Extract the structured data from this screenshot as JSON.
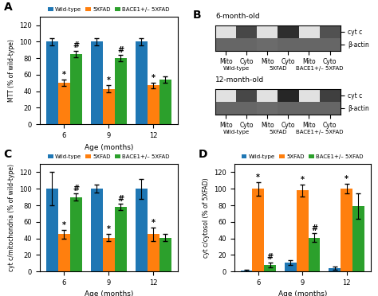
{
  "chart_data": [
    {
      "type": "bar",
      "title": "A",
      "xlabel": "Age (months)",
      "ylabel": "MTT (% of wild-type)",
      "categories": [
        "6",
        "9",
        "12"
      ],
      "series": [
        {
          "name": "Wild-type",
          "values": [
            100,
            100,
            100
          ],
          "errors": [
            4,
            4,
            4
          ]
        },
        {
          "name": "5XFAD",
          "values": [
            50,
            43,
            47
          ],
          "errors": [
            4,
            4,
            3
          ]
        },
        {
          "name": "BACE1+/– 5XFAD",
          "values": [
            85,
            80,
            54
          ],
          "errors": [
            4,
            4,
            4
          ]
        }
      ],
      "ylim": [
        0,
        130
      ],
      "yticks": [
        0,
        20,
        40,
        60,
        80,
        100,
        120
      ],
      "legend": "upper center",
      "annotations": [
        {
          "text": "*",
          "series": "5XFAD",
          "category": "6"
        },
        {
          "text": "*",
          "series": "5XFAD",
          "category": "9"
        },
        {
          "text": "*",
          "series": "5XFAD",
          "category": "12"
        },
        {
          "text": "#",
          "series": "BACE1+/– 5XFAD",
          "category": "6"
        },
        {
          "text": "#",
          "series": "BACE1+/– 5XFAD",
          "category": "9"
        }
      ]
    },
    {
      "type": "heatmap",
      "title": "B",
      "subtitle": "6-month-old",
      "categories": [
        "Mito",
        "Cyto",
        "Mito",
        "Cyto",
        "Mito",
        "Cyto"
      ],
      "y_categories": [
        "cyt c",
        "β-actin"
      ],
      "groups": [
        "Wild-type",
        "5XFAD",
        "BACE1+/– 5XFAD"
      ],
      "cells": [
        [
          0.12,
          0.72,
          0.12,
          0.82,
          0.12,
          0.68
        ],
        [
          0.6,
          0.6,
          0.58,
          0.6,
          0.6,
          0.6
        ]
      ],
      "zlim": [
        0,
        1
      ]
    },
    {
      "type": "heatmap",
      "subtitle": "12-month-old",
      "categories": [
        "Mito",
        "Cyto",
        "Mito",
        "Cyto",
        "Mito",
        "Cyto"
      ],
      "y_categories": [
        "cyt c",
        "β-actin"
      ],
      "groups": [
        "Wild-type",
        "5XFAD",
        "BACE1+/– 5XFAD"
      ],
      "cells": [
        [
          0.12,
          0.72,
          0.12,
          0.85,
          0.12,
          0.75
        ],
        [
          0.6,
          0.6,
          0.58,
          0.6,
          0.6,
          0.6
        ]
      ],
      "zlim": [
        0,
        1
      ]
    },
    {
      "type": "bar",
      "title": "C",
      "xlabel": "Age (months)",
      "ylabel": "cyt c/mitochondria (% of wild-type)",
      "categories": [
        "6",
        "9",
        "12"
      ],
      "series": [
        {
          "name": "Wild-type",
          "values": [
            100,
            100,
            100
          ],
          "errors": [
            20,
            5,
            12
          ]
        },
        {
          "name": "5XFAD",
          "values": [
            45,
            41,
            45
          ],
          "errors": [
            5,
            4,
            8
          ]
        },
        {
          "name": "BACE1+/– 5XFAD",
          "values": [
            90,
            78,
            41
          ],
          "errors": [
            4,
            4,
            4
          ]
        }
      ],
      "ylim": [
        0,
        130
      ],
      "yticks": [
        0,
        20,
        40,
        60,
        80,
        100,
        120
      ],
      "legend": "upper center",
      "annotations": [
        {
          "text": "*",
          "series": "5XFAD",
          "category": "6"
        },
        {
          "text": "*",
          "series": "5XFAD",
          "category": "9"
        },
        {
          "text": "*",
          "series": "5XFAD",
          "category": "12"
        },
        {
          "text": "#",
          "series": "BACE1+/– 5XFAD",
          "category": "6"
        },
        {
          "text": "#",
          "series": "BACE1+/– 5XFAD",
          "category": "9"
        }
      ]
    },
    {
      "type": "bar",
      "title": "D",
      "xlabel": "Age (months)",
      "ylabel": "cyt c/cytosol (% of 5XFAD)",
      "categories": [
        "6",
        "9",
        "12"
      ],
      "series": [
        {
          "name": "Wild-type",
          "values": [
            1,
            11,
            4
          ],
          "errors": [
            1,
            3,
            2
          ]
        },
        {
          "name": "5XFAD",
          "values": [
            100,
            98,
            100
          ],
          "errors": [
            8,
            7,
            6
          ]
        },
        {
          "name": "BACE1+/– 5XFAD",
          "values": [
            8,
            41,
            79
          ],
          "errors": [
            3,
            5,
            15
          ]
        }
      ],
      "ylim": [
        0,
        130
      ],
      "yticks": [
        0,
        20,
        40,
        60,
        80,
        100,
        120
      ],
      "legend": "upper center",
      "annotations": [
        {
          "text": "*",
          "series": "5XFAD",
          "category": "6"
        },
        {
          "text": "*",
          "series": "5XFAD",
          "category": "9"
        },
        {
          "text": "*",
          "series": "5XFAD",
          "category": "12"
        },
        {
          "text": "#",
          "series": "BACE1+/– 5XFAD",
          "category": "6"
        },
        {
          "text": "#",
          "series": "BACE1+/– 5XFAD",
          "category": "9"
        }
      ]
    }
  ]
}
